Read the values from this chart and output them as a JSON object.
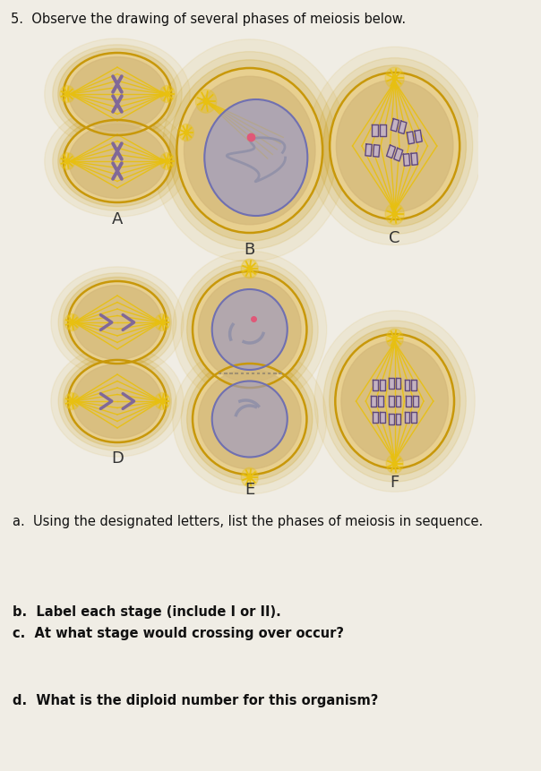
{
  "title": "5.  Observe the drawing of several phases of meiosis below.",
  "bg_color": "#f0ede5",
  "cell_fill": "#d4b87a",
  "cell_edge": "#c8980a",
  "cell_glow": "#e8d090",
  "nucleus_fill": "#9898cc",
  "nucleus_edge": "#7070b0",
  "spindle_color": "#e8c010",
  "chr_color": "#806898",
  "chr_dark": "#604878",
  "pink_color": "#e05878",
  "question_a": "a.  Using the designated letters, list the phases of meiosis in sequence.",
  "question_b": "b.  Label each stage (include I or II).",
  "question_c": "c.  At what stage would crossing over occur?",
  "question_d": "d.  What is the diploid number for this organism?"
}
